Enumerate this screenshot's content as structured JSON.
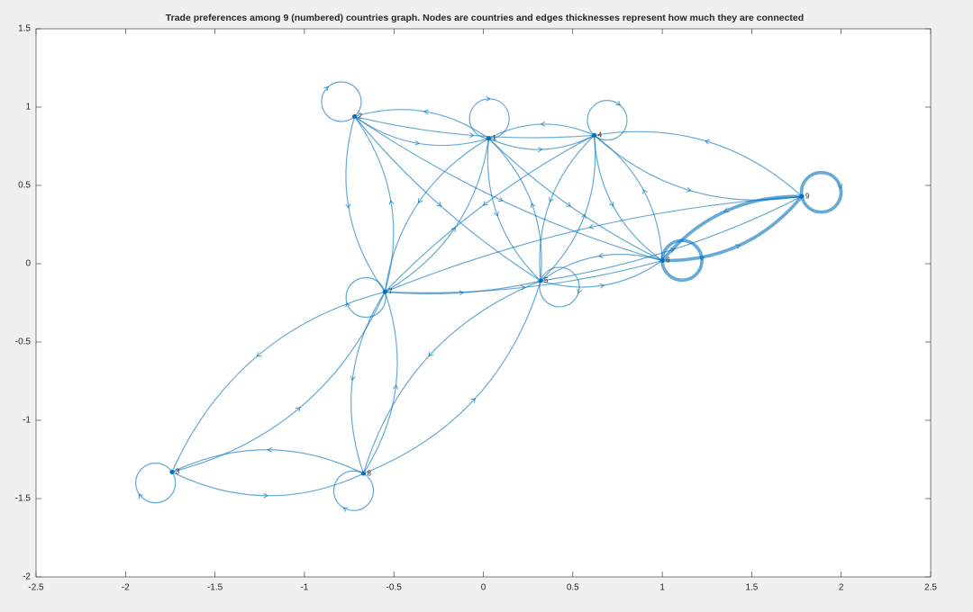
{
  "chart_data": {
    "type": "graph",
    "title": "Trade preferences among 9 (numbered) countries graph. Nodes are countries and edges thicknesses represent how much they are connected",
    "xlim": [
      -2.5,
      2.5
    ],
    "ylim": [
      -2,
      1.5
    ],
    "xticks": [
      -2.5,
      -2,
      -1.5,
      -1,
      -0.5,
      0,
      0.5,
      1,
      1.5,
      2,
      2.5
    ],
    "yticks": [
      -2,
      -1.5,
      -1,
      -0.5,
      0,
      0.5,
      1,
      1.5
    ],
    "color": "#0072bd",
    "nodes": [
      {
        "label": "1",
        "x": 0.03,
        "y": 0.8
      },
      {
        "label": "2",
        "x": -0.72,
        "y": 0.94
      },
      {
        "label": "3",
        "x": -1.74,
        "y": -1.33
      },
      {
        "label": "4",
        "x": 0.62,
        "y": 0.82
      },
      {
        "label": "5",
        "x": 0.32,
        "y": -0.11
      },
      {
        "label": "6",
        "x": 1.0,
        "y": 0.02
      },
      {
        "label": "7",
        "x": -0.55,
        "y": -0.18
      },
      {
        "label": "8",
        "x": -0.67,
        "y": -1.34
      },
      {
        "label": "9",
        "x": 1.78,
        "y": 0.43
      }
    ],
    "edges": [
      {
        "source": 1,
        "target": 1,
        "weight": 1
      },
      {
        "source": 2,
        "target": 2,
        "weight": 1
      },
      {
        "source": 3,
        "target": 3,
        "weight": 1
      },
      {
        "source": 4,
        "target": 4,
        "weight": 1
      },
      {
        "source": 5,
        "target": 5,
        "weight": 1
      },
      {
        "source": 6,
        "target": 6,
        "weight": 3
      },
      {
        "source": 7,
        "target": 7,
        "weight": 1
      },
      {
        "source": 8,
        "target": 8,
        "weight": 1
      },
      {
        "source": 9,
        "target": 9,
        "weight": 3
      },
      {
        "source": 1,
        "target": 2,
        "weight": 1
      },
      {
        "source": 2,
        "target": 1,
        "weight": 1
      },
      {
        "source": 1,
        "target": 4,
        "weight": 1
      },
      {
        "source": 4,
        "target": 1,
        "weight": 1
      },
      {
        "source": 2,
        "target": 4,
        "weight": 1
      },
      {
        "source": 4,
        "target": 9,
        "weight": 1
      },
      {
        "source": 9,
        "target": 4,
        "weight": 1
      },
      {
        "source": 2,
        "target": 7,
        "weight": 1
      },
      {
        "source": 7,
        "target": 2,
        "weight": 1
      },
      {
        "source": 2,
        "target": 5,
        "weight": 1
      },
      {
        "source": 2,
        "target": 6,
        "weight": 1
      },
      {
        "source": 1,
        "target": 7,
        "weight": 1
      },
      {
        "source": 7,
        "target": 1,
        "weight": 1
      },
      {
        "source": 1,
        "target": 5,
        "weight": 1
      },
      {
        "source": 5,
        "target": 1,
        "weight": 1
      },
      {
        "source": 1,
        "target": 6,
        "weight": 1
      },
      {
        "source": 4,
        "target": 7,
        "weight": 1
      },
      {
        "source": 4,
        "target": 5,
        "weight": 1
      },
      {
        "source": 5,
        "target": 4,
        "weight": 1
      },
      {
        "source": 4,
        "target": 6,
        "weight": 1
      },
      {
        "source": 6,
        "target": 4,
        "weight": 1
      },
      {
        "source": 5,
        "target": 6,
        "weight": 1
      },
      {
        "source": 6,
        "target": 5,
        "weight": 1
      },
      {
        "source": 7,
        "target": 5,
        "weight": 1
      },
      {
        "source": 7,
        "target": 6,
        "weight": 1
      },
      {
        "source": 5,
        "target": 9,
        "weight": 1
      },
      {
        "source": 6,
        "target": 9,
        "weight": 3
      },
      {
        "source": 9,
        "target": 6,
        "weight": 3
      },
      {
        "source": 7,
        "target": 3,
        "weight": 1
      },
      {
        "source": 3,
        "target": 7,
        "weight": 1
      },
      {
        "source": 7,
        "target": 8,
        "weight": 1
      },
      {
        "source": 8,
        "target": 7,
        "weight": 1
      },
      {
        "source": 3,
        "target": 8,
        "weight": 1
      },
      {
        "source": 8,
        "target": 3,
        "weight": 1
      },
      {
        "source": 8,
        "target": 5,
        "weight": 1
      },
      {
        "source": 5,
        "target": 8,
        "weight": 1
      },
      {
        "source": 9,
        "target": 7,
        "weight": 1
      }
    ]
  }
}
